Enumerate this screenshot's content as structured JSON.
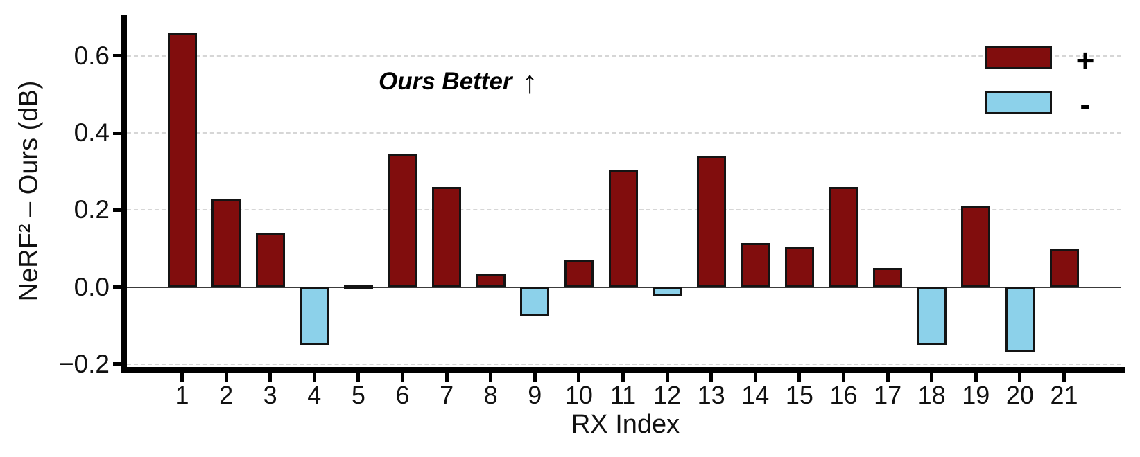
{
  "figure": {
    "annotation": {
      "text": "Ours Better",
      "arrow": "↑"
    },
    "legend": [
      {
        "label": "+",
        "color": "#810D0D",
        "meaning": "positive difference"
      },
      {
        "label": "-",
        "color": "#8CD1EA",
        "meaning": "negative difference"
      }
    ]
  },
  "chart_data": {
    "type": "bar",
    "title": "",
    "xlabel": "RX Index",
    "ylabel": "NeRF² – Ours (dB)",
    "categories": [
      "1",
      "2",
      "3",
      "4",
      "5",
      "6",
      "7",
      "8",
      "9",
      "10",
      "11",
      "12",
      "13",
      "14",
      "15",
      "16",
      "17",
      "18",
      "19",
      "20",
      "21"
    ],
    "values": [
      0.66,
      0.23,
      0.14,
      -0.15,
      0.005,
      0.345,
      0.26,
      0.035,
      -0.075,
      0.07,
      0.305,
      -0.025,
      0.34,
      0.115,
      0.105,
      0.26,
      0.05,
      -0.15,
      0.21,
      -0.17,
      0.1
    ],
    "positive_color": "#810D0D",
    "negative_color": "#8CD1EA",
    "bar_edge_color": "#141414",
    "ylim": [
      -0.21,
      0.71
    ],
    "yticks": [
      0.6,
      0.4,
      0.2,
      0.0,
      -0.2
    ],
    "ytick_labels": [
      "0.6",
      "0.4",
      "0.2",
      "0.0",
      "−0.2"
    ],
    "gridline_values": [
      0.6,
      0.4,
      0.2,
      -0.2
    ],
    "grid": "horizontal dashed",
    "legend_position": "upper right",
    "annotation": "Ours Better ↑"
  }
}
